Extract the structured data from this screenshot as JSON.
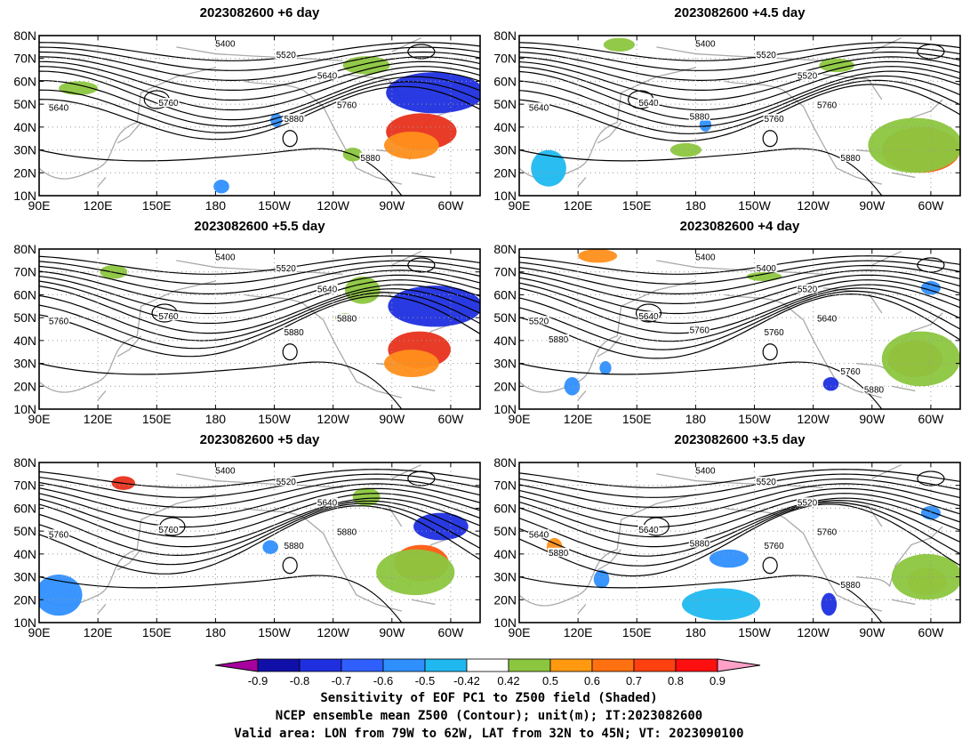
{
  "panels": [
    {
      "title": "2023082600  +6 day",
      "blobs": [
        {
          "c": "#1f2fe0",
          "lon": 292,
          "lat": 55,
          "rx": 25,
          "ry": 9
        },
        {
          "c": "#e8321c",
          "lon": 285,
          "lat": 38,
          "rx": 18,
          "ry": 8
        },
        {
          "c": "#ff8f1a",
          "lon": 280,
          "lat": 32,
          "rx": 14,
          "ry": 6
        },
        {
          "c": "#8cc63f",
          "lon": 110,
          "lat": 57,
          "rx": 10,
          "ry": 3
        },
        {
          "c": "#8cc63f",
          "lon": 257,
          "lat": 67,
          "rx": 12,
          "ry": 4
        },
        {
          "c": "#2f8fff",
          "lon": 183,
          "lat": 14,
          "rx": 4,
          "ry": 3
        },
        {
          "c": "#2f8fff",
          "lon": 211,
          "lat": 43,
          "rx": 3,
          "ry": 3
        },
        {
          "c": "#8cc63f",
          "lon": 250,
          "lat": 28,
          "rx": 5,
          "ry": 3
        }
      ],
      "labels": [
        "5400",
        "5520",
        "5640",
        "5640",
        "5760",
        "5760",
        "5880",
        "5880"
      ]
    },
    {
      "title": "2023082600  +4.5 day",
      "blobs": [
        {
          "c": "#ff5a10",
          "lon": 295,
          "lat": 30,
          "rx": 20,
          "ry": 10
        },
        {
          "c": "#8cc63f",
          "lon": 292,
          "lat": 32,
          "rx": 24,
          "ry": 12
        },
        {
          "c": "#1fb9f0",
          "lon": 105,
          "lat": 22,
          "rx": 9,
          "ry": 8
        },
        {
          "c": "#8cc63f",
          "lon": 141,
          "lat": 76,
          "rx": 8,
          "ry": 3
        },
        {
          "c": "#8cc63f",
          "lon": 175,
          "lat": 30,
          "rx": 8,
          "ry": 3
        },
        {
          "c": "#2f8fff",
          "lon": 185,
          "lat": 41,
          "rx": 3,
          "ry": 3
        },
        {
          "c": "#8cc63f",
          "lon": 252,
          "lat": 67,
          "rx": 9,
          "ry": 3
        }
      ],
      "labels": [
        "5400",
        "5520",
        "5520",
        "5640",
        "5640",
        "5760",
        "5760",
        "5880",
        "5880"
      ]
    },
    {
      "title": "2023082600  +5.5 day",
      "blobs": [
        {
          "c": "#1f2fe0",
          "lon": 292,
          "lat": 55,
          "rx": 24,
          "ry": 9
        },
        {
          "c": "#e8321c",
          "lon": 284,
          "lat": 36,
          "rx": 16,
          "ry": 8
        },
        {
          "c": "#ff8f1a",
          "lon": 280,
          "lat": 30,
          "rx": 14,
          "ry": 6
        },
        {
          "c": "#8cc63f",
          "lon": 128,
          "lat": 70,
          "rx": 7,
          "ry": 3
        },
        {
          "c": "#8cc63f",
          "lon": 255,
          "lat": 62,
          "rx": 9,
          "ry": 6
        },
        {
          "c": "#8cc63f",
          "lon": 246,
          "lat": 50,
          "rx": 5,
          "ry": 2
        }
      ],
      "labels": [
        "5400",
        "5520",
        "5640",
        "5760",
        "5760",
        "5880",
        "5880"
      ]
    },
    {
      "title": "2023082600  +4 day",
      "blobs": [
        {
          "c": "#ff5a10",
          "lon": 292,
          "lat": 32,
          "rx": 14,
          "ry": 8
        },
        {
          "c": "#8cc63f",
          "lon": 295,
          "lat": 32,
          "rx": 20,
          "ry": 12
        },
        {
          "c": "#ff8f1a",
          "lon": 130,
          "lat": 77,
          "rx": 10,
          "ry": 3
        },
        {
          "c": "#1f2fe0",
          "lon": 249,
          "lat": 21,
          "rx": 4,
          "ry": 3
        },
        {
          "c": "#2f8fff",
          "lon": 117,
          "lat": 20,
          "rx": 4,
          "ry": 4
        },
        {
          "c": "#2f8fff",
          "lon": 134,
          "lat": 28,
          "rx": 3,
          "ry": 3
        },
        {
          "c": "#8cc63f",
          "lon": 215,
          "lat": 68,
          "rx": 9,
          "ry": 2
        },
        {
          "c": "#2f8fff",
          "lon": 300,
          "lat": 63,
          "rx": 5,
          "ry": 3
        }
      ],
      "labels": [
        "5400",
        "5400",
        "5520",
        "5520",
        "5640",
        "5640",
        "5760",
        "5760",
        "5760",
        "5880",
        "5880"
      ]
    },
    {
      "title": "2023082600  +5 day",
      "blobs": [
        {
          "c": "#1f2fe0",
          "lon": 295,
          "lat": 52,
          "rx": 14,
          "ry": 6
        },
        {
          "c": "#ff5a10",
          "lon": 285,
          "lat": 36,
          "rx": 14,
          "ry": 8
        },
        {
          "c": "#8cc63f",
          "lon": 282,
          "lat": 32,
          "rx": 20,
          "ry": 10
        },
        {
          "c": "#2f8fff",
          "lon": 100,
          "lat": 22,
          "rx": 12,
          "ry": 9
        },
        {
          "c": "#e8321c",
          "lon": 133,
          "lat": 71,
          "rx": 6,
          "ry": 3
        },
        {
          "c": "#2f8fff",
          "lon": 208,
          "lat": 43,
          "rx": 4,
          "ry": 3
        },
        {
          "c": "#8cc63f",
          "lon": 257,
          "lat": 65,
          "rx": 7,
          "ry": 4
        }
      ],
      "labels": [
        "5400",
        "5520",
        "5640",
        "5760",
        "5760",
        "5880",
        "5880"
      ]
    },
    {
      "title": "2023082600  +3.5 day",
      "blobs": [
        {
          "c": "#ff8f1a",
          "lon": 108,
          "lat": 43,
          "rx": 4,
          "ry": 4
        },
        {
          "c": "#2f8fff",
          "lon": 132,
          "lat": 29,
          "rx": 4,
          "ry": 4
        },
        {
          "c": "#2f8fff",
          "lon": 197,
          "lat": 38,
          "rx": 10,
          "ry": 4
        },
        {
          "c": "#1fb9f0",
          "lon": 193,
          "lat": 18,
          "rx": 20,
          "ry": 7
        },
        {
          "c": "#1f2fe0",
          "lon": 248,
          "lat": 18,
          "rx": 4,
          "ry": 5
        },
        {
          "c": "#ff8f1a",
          "lon": 298,
          "lat": 28,
          "rx": 10,
          "ry": 6
        },
        {
          "c": "#8cc63f",
          "lon": 298,
          "lat": 30,
          "rx": 18,
          "ry": 10
        },
        {
          "c": "#2f8fff",
          "lon": 300,
          "lat": 58,
          "rx": 5,
          "ry": 3
        }
      ],
      "labels": [
        "5400",
        "5520",
        "5520",
        "5640",
        "5640",
        "5760",
        "5760",
        "5880",
        "5880",
        "5880"
      ]
    }
  ],
  "axes": {
    "lat_labels": [
      "80N",
      "70N",
      "60N",
      "50N",
      "40N",
      "30N",
      "20N",
      "10N"
    ],
    "lon_labels": [
      "90E",
      "120E",
      "150E",
      "180",
      "150W",
      "120W",
      "90W",
      "60W"
    ]
  },
  "colorbar": {
    "tick_labels": [
      "-0.9",
      "-0.8",
      "-0.7",
      "-0.6",
      "-0.5",
      "-0.42",
      "0.42",
      "0.5",
      "0.6",
      "0.7",
      "0.8",
      "0.9"
    ],
    "colors": [
      "#a6009e",
      "#1010a8",
      "#1f2fe0",
      "#2f5fff",
      "#2f8fff",
      "#1fb9f0",
      "#ffffff",
      "#8cc63f",
      "#ff9a10",
      "#ff7010",
      "#ff4010",
      "#ff1010",
      "#ffa0c8"
    ]
  },
  "footer": {
    "line1": "Sensitivity of EOF PC1 to Z500 field (Shaded)",
    "line2": "NCEP ensemble mean Z500 (Contour); unit(m); IT:2023082600",
    "line3": "Valid area: LON from 79W to 62W, LAT from 32N to 45N; VT: 2023090100"
  }
}
